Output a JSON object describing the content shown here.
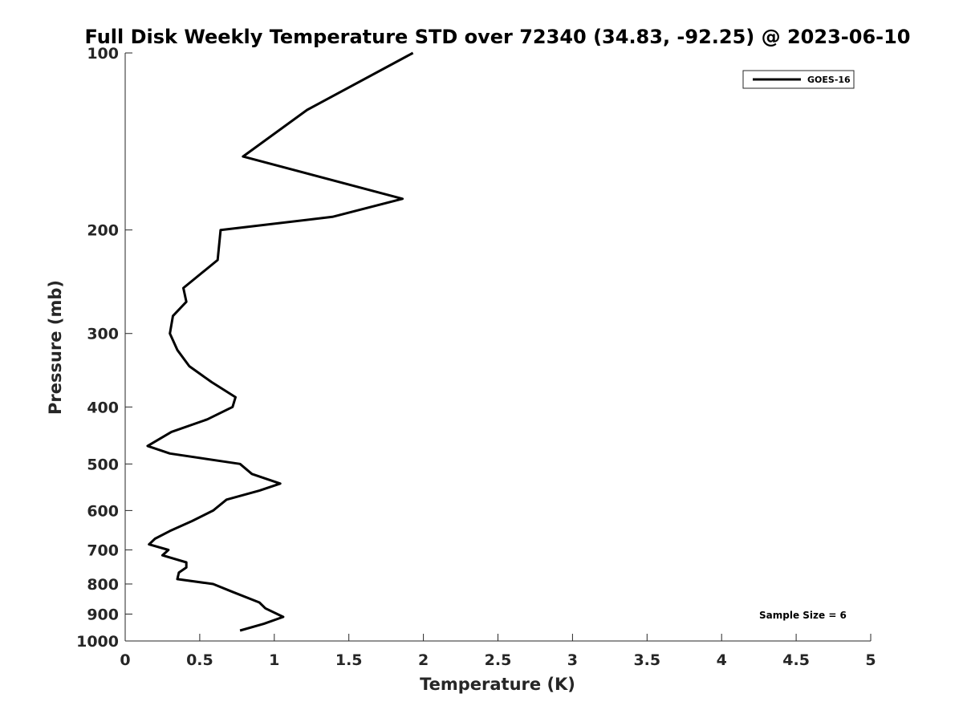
{
  "chart_data": {
    "type": "line",
    "title": "Full Disk Weekly Temperature STD over 72340 (34.83, -92.25) @ 2023-06-10",
    "xlabel": "Temperature (K)",
    "ylabel": "Pressure (mb)",
    "xlim": [
      0,
      5
    ],
    "ylim": [
      100,
      1000
    ],
    "y_scale": "log",
    "y_reversed": true,
    "grid": false,
    "legend_position": "top-right",
    "x_ticks": [
      "0",
      "0.5",
      "1",
      "1.5",
      "2",
      "2.5",
      "3",
      "3.5",
      "4",
      "4.5",
      "5"
    ],
    "y_ticks": [
      "100",
      "200",
      "300",
      "400",
      "500",
      "600",
      "700",
      "800",
      "900",
      "1000"
    ],
    "series": [
      {
        "name": "GOES-16",
        "color": "#000000",
        "points": [
          [
            1.93,
            100
          ],
          [
            1.22,
            125
          ],
          [
            0.79,
            150
          ],
          [
            1.86,
            177
          ],
          [
            1.39,
            190
          ],
          [
            0.64,
            200
          ],
          [
            0.62,
            225
          ],
          [
            0.39,
            251
          ],
          [
            0.41,
            265
          ],
          [
            0.32,
            280
          ],
          [
            0.3,
            300
          ],
          [
            0.35,
            320
          ],
          [
            0.43,
            341
          ],
          [
            0.58,
            363
          ],
          [
            0.74,
            385
          ],
          [
            0.72,
            400
          ],
          [
            0.55,
            420
          ],
          [
            0.31,
            441
          ],
          [
            0.15,
            466
          ],
          [
            0.3,
            480
          ],
          [
            0.77,
            500
          ],
          [
            0.85,
            520
          ],
          [
            1.04,
            540
          ],
          [
            0.9,
            555
          ],
          [
            0.68,
            575
          ],
          [
            0.59,
            600
          ],
          [
            0.45,
            625
          ],
          [
            0.3,
            650
          ],
          [
            0.2,
            670
          ],
          [
            0.16,
            685
          ],
          [
            0.29,
            700
          ],
          [
            0.25,
            715
          ],
          [
            0.41,
            735
          ],
          [
            0.41,
            750
          ],
          [
            0.36,
            765
          ],
          [
            0.35,
            785
          ],
          [
            0.59,
            800
          ],
          [
            0.72,
            825
          ],
          [
            0.9,
            860
          ],
          [
            0.94,
            880
          ],
          [
            1.06,
            910
          ],
          [
            0.93,
            935
          ],
          [
            0.77,
            960
          ]
        ]
      }
    ],
    "legend": [
      {
        "label": "GOES-16"
      }
    ],
    "annotation": "Sample Size = 6"
  }
}
